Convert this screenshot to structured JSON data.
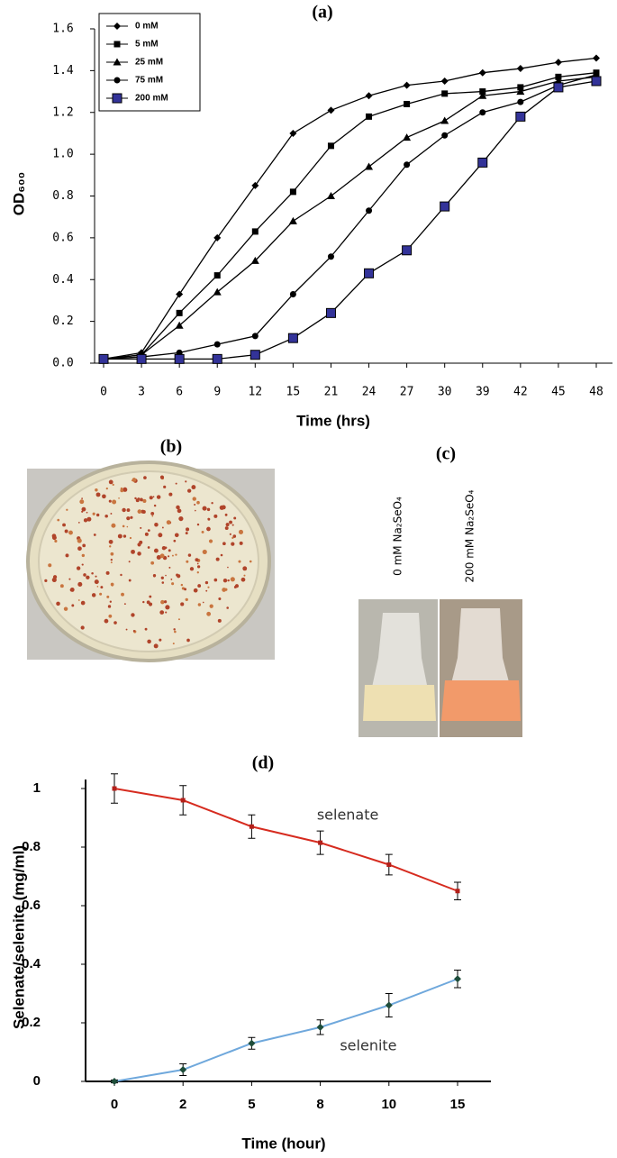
{
  "chart_data": [
    {
      "type": "line",
      "panel_label": "(a)",
      "x_label": "Time (hrs)",
      "y_label": "OD₆₀₀",
      "categories": [
        "0",
        "3",
        "6",
        "9",
        "12",
        "15",
        "21",
        "24",
        "27",
        "30",
        "39",
        "42",
        "45",
        "48"
      ],
      "ylim": [
        0,
        1.6
      ],
      "yticks": [
        {
          "value": 0,
          "label": "0.0"
        },
        0.2,
        0.4,
        0.6,
        0.8,
        {
          "value": 1,
          "label": "1.0"
        },
        1.2,
        1.4,
        1.6
      ],
      "legend": "upper-left",
      "grid": false,
      "series": [
        {
          "name": "0 mM",
          "color": "#000000",
          "marker": "diamond",
          "values": [
            0.02,
            0.05,
            0.33,
            0.6,
            0.85,
            1.1,
            1.21,
            1.28,
            1.33,
            1.35,
            1.39,
            1.41,
            1.44,
            1.46
          ]
        },
        {
          "name": "5 mM",
          "color": "#000000",
          "marker": "square",
          "values": [
            0.02,
            0.04,
            0.24,
            0.42,
            0.63,
            0.82,
            1.04,
            1.18,
            1.24,
            1.29,
            1.3,
            1.32,
            1.37,
            1.39
          ]
        },
        {
          "name": "25 mM",
          "color": "#000000",
          "marker": "triangle",
          "values": [
            0.02,
            0.04,
            0.18,
            0.34,
            0.49,
            0.68,
            0.8,
            0.94,
            1.08,
            1.16,
            1.28,
            1.3,
            1.35,
            1.37
          ]
        },
        {
          "name": "75 mM",
          "color": "#000000",
          "marker": "circle",
          "values": [
            0.02,
            0.03,
            0.05,
            0.09,
            0.13,
            0.33,
            0.51,
            0.73,
            0.95,
            1.09,
            1.2,
            1.25,
            1.33,
            1.38
          ]
        },
        {
          "name": "200 mM",
          "color": "#000000",
          "marker_fill": "#333399",
          "marker": "big-square",
          "values": [
            0.02,
            0.02,
            0.02,
            0.02,
            0.04,
            0.12,
            0.24,
            0.43,
            0.54,
            0.75,
            0.96,
            1.18,
            1.32,
            1.35
          ]
        }
      ]
    },
    {
      "type": "line",
      "panel_label": "(d)",
      "x_label": "Time (hour)",
      "y_label": "Selenate/selenite (mg/ml)",
      "categories": [
        "0",
        "2",
        "5",
        "8",
        "10",
        "15"
      ],
      "ylim": [
        0,
        1
      ],
      "yticks": [
        0,
        0.2,
        0.4,
        0.6,
        0.8,
        1
      ],
      "grid": false,
      "series": [
        {
          "name": "selenate",
          "color": "#d62b1f",
          "marker_fill": "#b3201a",
          "marker": "small-square",
          "values": [
            1,
            0.96,
            0.87,
            0.815,
            0.74,
            0.65
          ],
          "errors": [
            0.05,
            0.05,
            0.04,
            0.04,
            0.035,
            0.03
          ]
        },
        {
          "name": "selenite",
          "color": "#6fa8dc",
          "marker_fill": "#1e4d3a",
          "marker": "diamond",
          "values": [
            0,
            0.04,
            0.13,
            0.185,
            0.26,
            0.35
          ],
          "errors": [
            0.005,
            0.02,
            0.02,
            0.025,
            0.04,
            0.03
          ]
        }
      ]
    }
  ],
  "photo_b": {
    "panel_label": "(b)"
  },
  "photo_c": {
    "panel_label": "(c)",
    "flask_labels": [
      "0 mM Na₂SeO₄",
      "200 mM Na₂SeO₄"
    ]
  }
}
